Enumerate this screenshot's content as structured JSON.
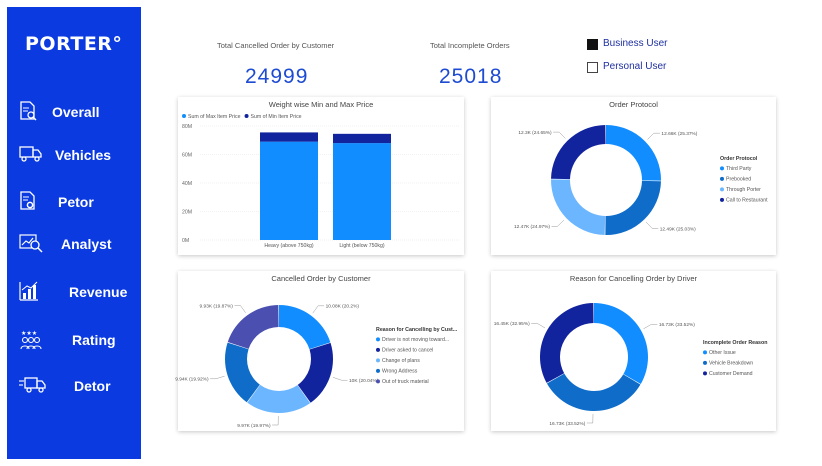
{
  "brand": {
    "logo": "PORTER°"
  },
  "sidebar": {
    "items": [
      {
        "label": "Overall",
        "icon": "document-search-icon"
      },
      {
        "label": "Vehicles",
        "icon": "truck-icon"
      },
      {
        "label": "Petor",
        "icon": "document-gear-icon"
      },
      {
        "label": "Analyst",
        "icon": "magnifier-chart-icon"
      },
      {
        "label": "Revenue",
        "icon": "bar-chart-icon"
      },
      {
        "label": "Rating",
        "icon": "people-stars-icon"
      },
      {
        "label": "Detor",
        "icon": "delivery-truck-icon"
      }
    ]
  },
  "kpis": [
    {
      "label": "Total Cancelled Order by Customer",
      "value": "24999"
    },
    {
      "label": "Total Incomplete Orders",
      "value": "25018"
    }
  ],
  "slicer": {
    "options": [
      {
        "label": "Business User",
        "selected": true
      },
      {
        "label": "Personal User",
        "selected": false
      }
    ]
  },
  "colors": {
    "sidebar": "#0a3ae0",
    "blue_light": "#118dff",
    "blue_dark": "#12239e",
    "blue_mid": "#0f6cc9",
    "blue_pale": "#6bb6ff",
    "purple_blue": "#4a4fb0",
    "kpi_text": "#1d4bd1"
  },
  "chart_data": [
    {
      "type": "bar",
      "title": "Weight wise Min and Max Price",
      "legend": [
        "Sum of Max Item Price",
        "Sum of Min Item Price"
      ],
      "legend_position": "top-left",
      "categories": [
        "Heavy (above 750kg)",
        "Light (below 750kg)"
      ],
      "series": [
        {
          "name": "Sum of Max Item Price",
          "values": [
            69,
            68
          ]
        },
        {
          "name": "Sum of Min Item Price",
          "values": [
            6.5,
            6.5
          ]
        }
      ],
      "ylim": [
        0,
        80
      ],
      "yticks": [
        "0M",
        "20M",
        "40M",
        "60M",
        "80M"
      ],
      "stacked": true,
      "grid": true
    },
    {
      "type": "pie",
      "donut": true,
      "title": "Order Protocol",
      "legend_title": "Order Protocol",
      "legend": [
        "Third Party",
        "Prebooked",
        "Through Porter",
        "Call to Restaurant"
      ],
      "legend_position": "right",
      "values": [
        12.66,
        12.49,
        12.47,
        12.3
      ],
      "labels": [
        "12.66K (25.37%)",
        "12.49K (25.03%)",
        "12.47K (24.97%)",
        "12.3K (24.65%)"
      ]
    },
    {
      "type": "pie",
      "donut": true,
      "title": "Cancelled Order by Customer",
      "legend_title": "Reason for Cancelling by Cust...",
      "legend": [
        "Driver is not moving toward...",
        "Driver asked to cancel",
        "Change of plans",
        "Wrong Address",
        "Out of truck material"
      ],
      "legend_position": "right",
      "values": [
        10.08,
        10,
        9.97,
        9.94,
        9.93
      ],
      "labels": [
        "10.08K (20.2%)",
        "10K (20.04%)",
        "9.97K (19.97%)",
        "9.94K (19.92%)",
        "9.93K (19.87%)"
      ]
    },
    {
      "type": "pie",
      "donut": true,
      "title": "Reason for Cancelling Order by Driver",
      "legend_title": "Incomplete Order Reason",
      "legend": [
        "Other Issue",
        "Vehicle Breakdown",
        "Customer Demand"
      ],
      "legend_position": "right",
      "values": [
        16.73,
        16.73,
        16.45
      ],
      "labels": [
        "16.73K (33.52%)",
        "16.73K (33.52%)",
        "16.45K (32.95%)"
      ]
    }
  ]
}
